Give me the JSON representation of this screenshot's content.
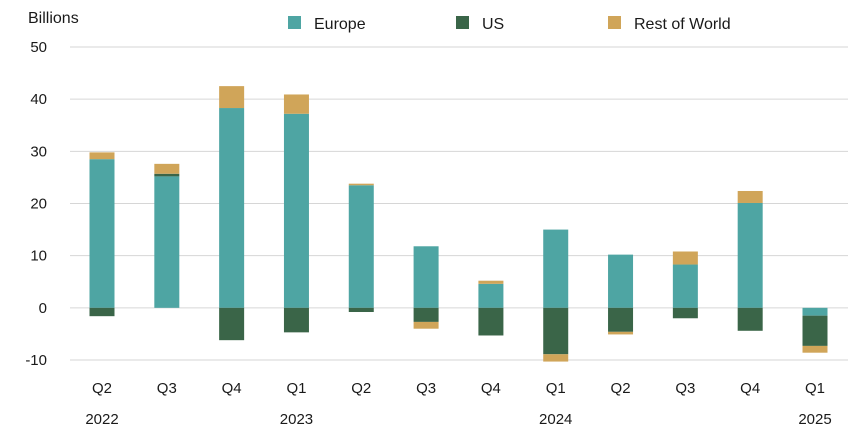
{
  "chart_data": {
    "type": "bar",
    "stacked": true,
    "ylabel": "Billions",
    "ylim": [
      -10,
      50
    ],
    "yticks": [
      -10,
      0,
      10,
      20,
      30,
      40,
      50
    ],
    "ytick_labels": [
      "-10",
      "0",
      "10",
      "20",
      "30",
      "40",
      "50"
    ],
    "grid": true,
    "legend_position": "top",
    "categories": [
      "Q2",
      "Q3",
      "Q4",
      "Q1",
      "Q2",
      "Q3",
      "Q4",
      "Q1",
      "Q2",
      "Q3",
      "Q4",
      "Q1"
    ],
    "year_labels": [
      {
        "label": "2022",
        "category_index": 0
      },
      {
        "label": "2023",
        "category_index": 3
      },
      {
        "label": "2024",
        "category_index": 7
      },
      {
        "label": "2025",
        "category_index": 11
      }
    ],
    "series": [
      {
        "name": "Europe",
        "color": "#4ea5a3",
        "values": [
          28.5,
          25.2,
          38.3,
          37.2,
          23.5,
          11.8,
          4.6,
          15.0,
          10.2,
          8.3,
          20.1,
          -1.5
        ]
      },
      {
        "name": "US",
        "color": "#3a6548",
        "values": [
          -1.6,
          0.5,
          -6.2,
          -4.7,
          -0.8,
          -2.7,
          -5.3,
          -8.9,
          -4.6,
          -2.0,
          -4.4,
          -5.8
        ]
      },
      {
        "name": "Rest of World",
        "color": "#d0a559",
        "values": [
          1.3,
          1.9,
          4.2,
          3.7,
          0.3,
          -1.3,
          0.6,
          -1.4,
          -0.5,
          2.5,
          2.3,
          -1.3
        ]
      }
    ]
  }
}
